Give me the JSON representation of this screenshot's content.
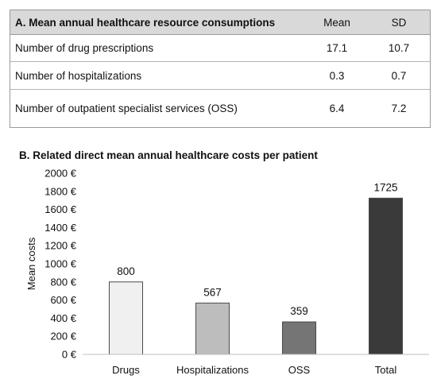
{
  "table": {
    "title": "A. Mean annual healthcare resource consumptions",
    "col_mean": "Mean",
    "col_sd": "SD",
    "rows": [
      {
        "label": "Number of drug prescriptions",
        "mean": "17.1",
        "sd": "10.7"
      },
      {
        "label": "Number of hospitalizations",
        "mean": "0.3",
        "sd": "0.7"
      },
      {
        "label": "Number of outpatient specialist services (OSS)",
        "mean": "6.4",
        "sd": "7.2"
      }
    ]
  },
  "chart_data": {
    "type": "bar",
    "title": "B. Related direct mean annual healthcare costs per patient",
    "categories": [
      "Drugs",
      "Hospitalizations",
      "OSS",
      "Total"
    ],
    "values": [
      800,
      567,
      359,
      1725
    ],
    "data_labels": [
      "800",
      "567",
      "359",
      "1725"
    ],
    "bar_colors": [
      "#f0f0f0",
      "#bdbdbd",
      "#757575",
      "#3a3a3a"
    ],
    "bar_stroke": "#4a4a4a",
    "ylabel": "Mean costs",
    "ylim": [
      0,
      2000
    ],
    "yticks": [
      0,
      200,
      400,
      600,
      800,
      1000,
      1200,
      1400,
      1600,
      1800,
      2000
    ],
    "ytick_labels": [
      "0 €",
      "200 €",
      "400 €",
      "600 €",
      "800 €",
      "1000 €",
      "1200 €",
      "1400 €",
      "1600 €",
      "1800 €",
      "2000 €"
    ],
    "grid": false,
    "legend": "none"
  }
}
